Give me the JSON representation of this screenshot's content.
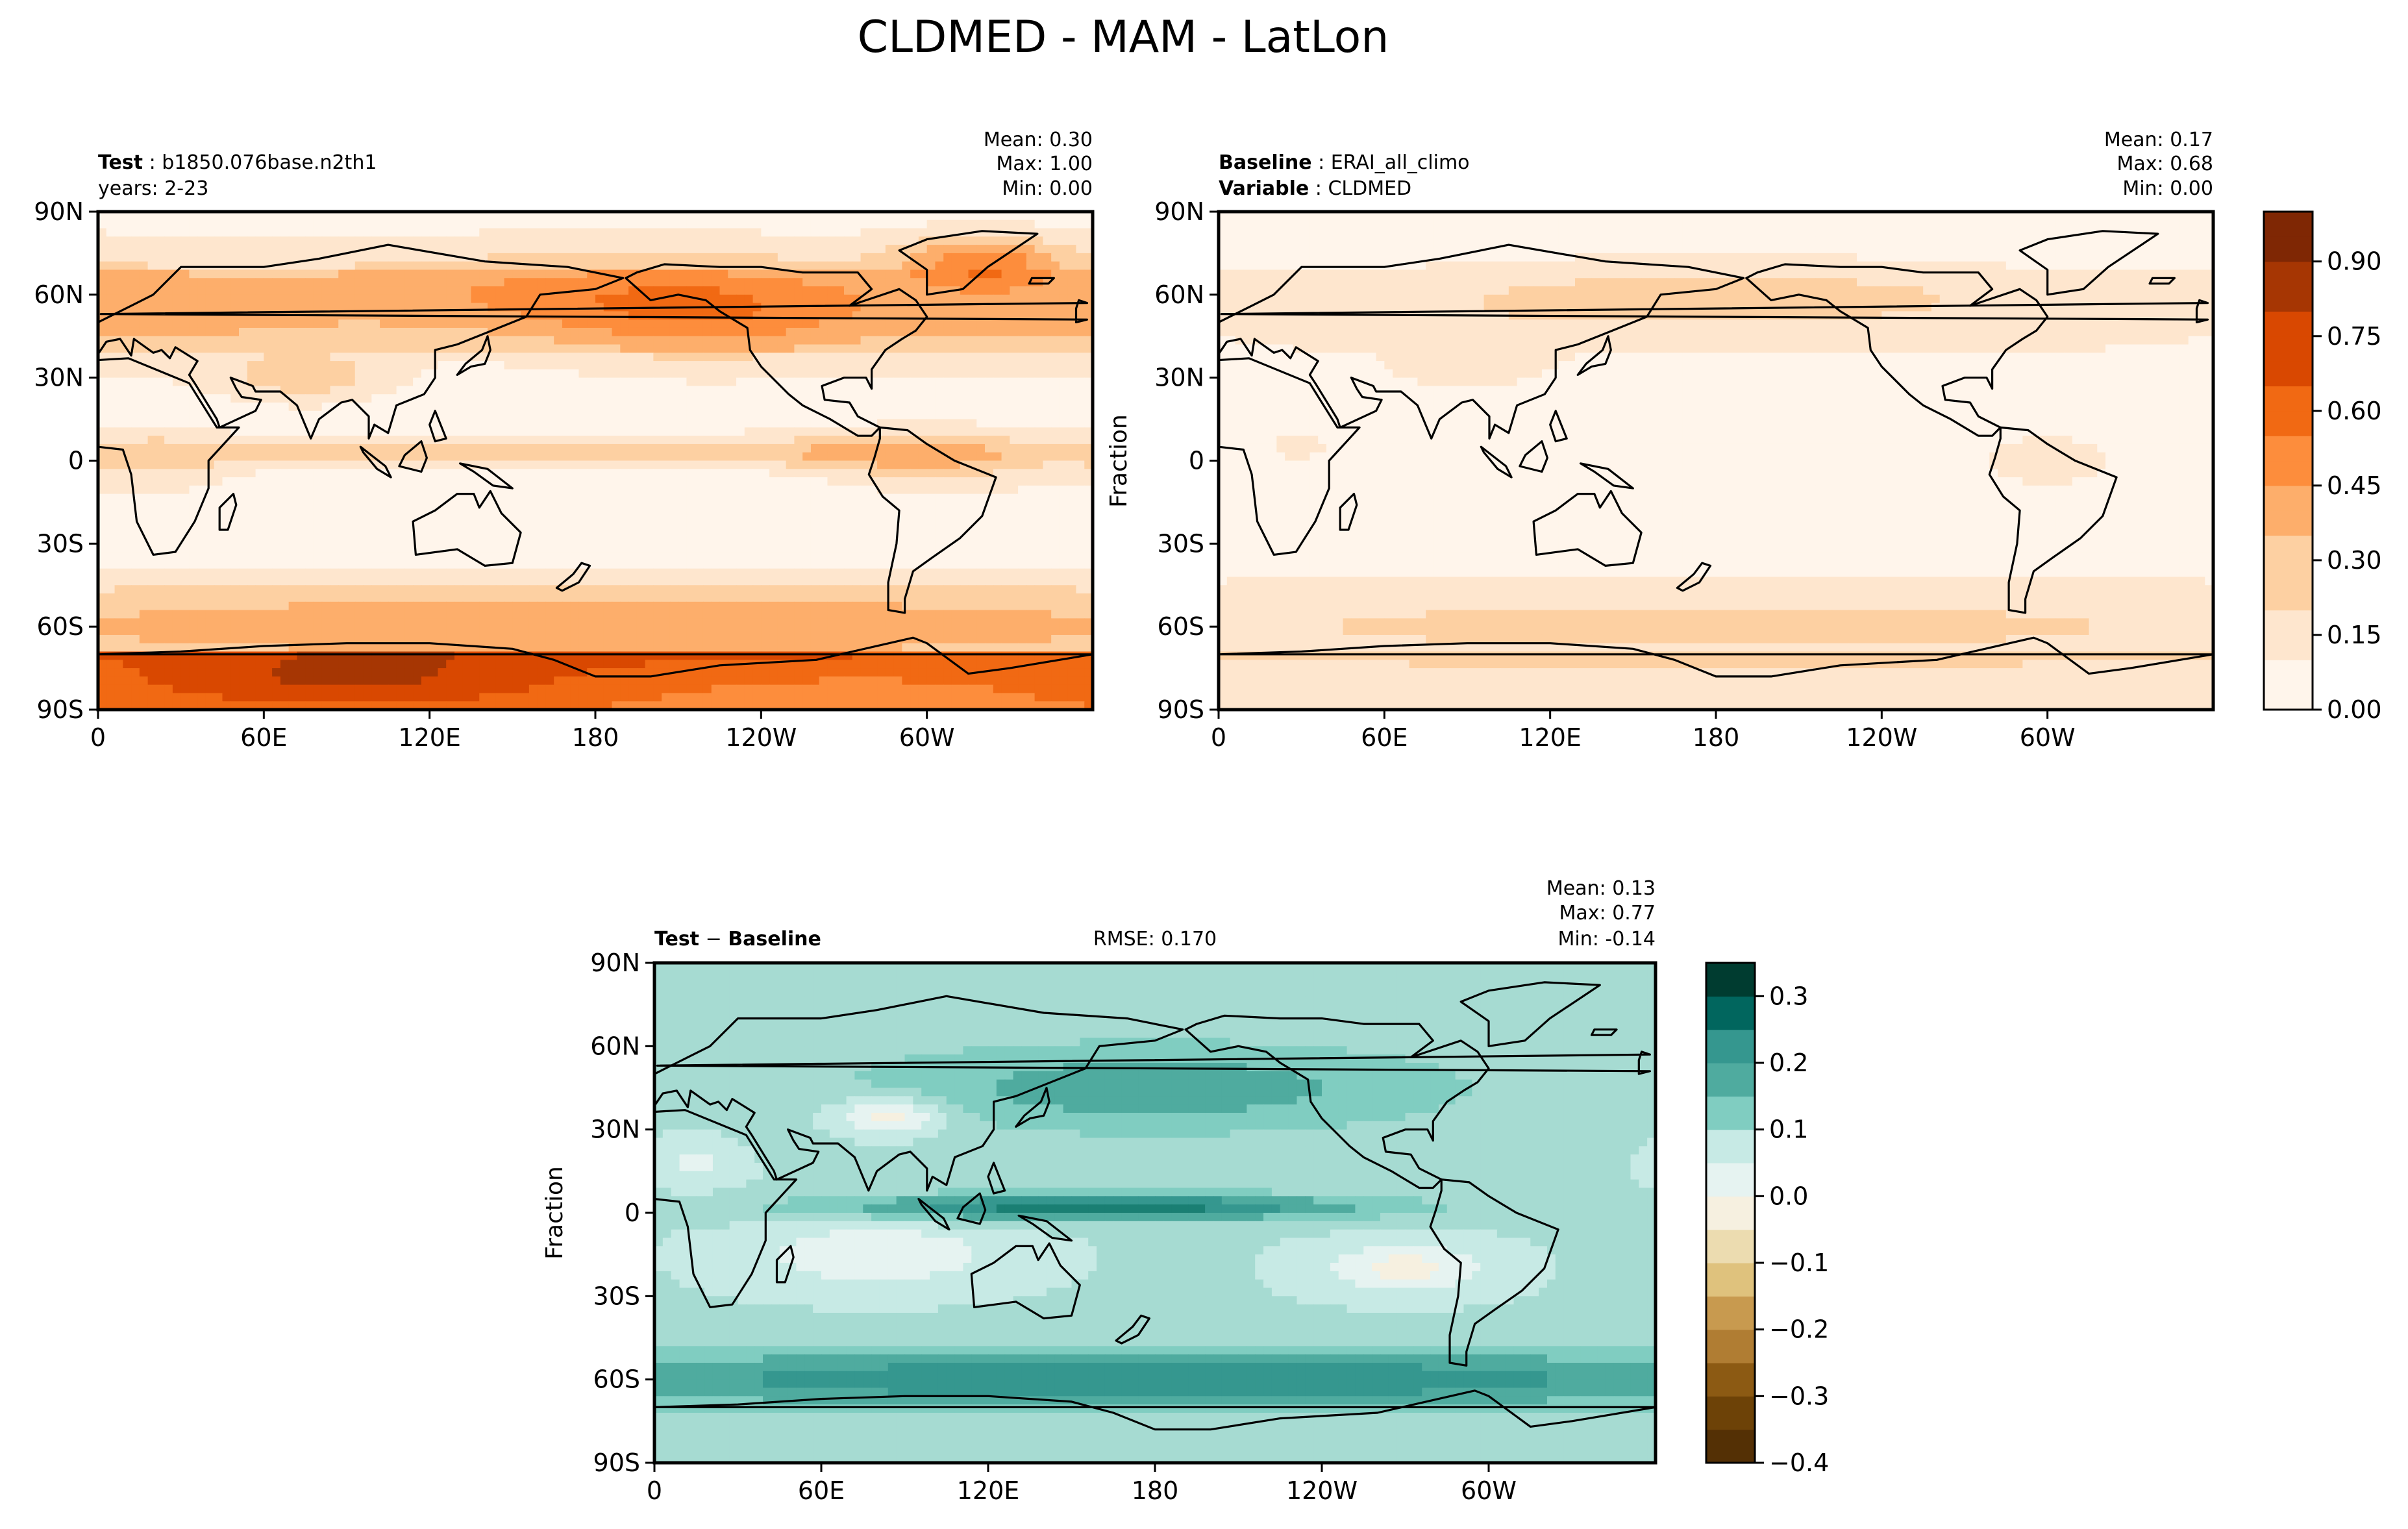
{
  "figure": {
    "title": "CLDMED - MAM - LatLon"
  },
  "chart_data": [
    {
      "type": "heatmap",
      "name": "test",
      "title_left_bold": "Test",
      "title_left_value": "b1850.076base.n2th1",
      "title_left_line2": "years: 2-23",
      "stats": {
        "mean": "Mean:  0.30",
        "max": "Max:  1.00",
        "min": "Min:  0.00"
      },
      "ylabel": "",
      "xticks": [
        "0",
        "60E",
        "120E",
        "180",
        "120W",
        "60W"
      ],
      "yticks": [
        "90N",
        "60N",
        "30N",
        "0",
        "30S",
        "60S",
        "90S"
      ],
      "xlim": [
        0,
        360
      ],
      "ylim": [
        -90,
        90
      ],
      "colormap": "Oranges",
      "value_range": [
        0,
        1.0
      ]
    },
    {
      "type": "heatmap",
      "name": "baseline",
      "title_left_bold": "Baseline",
      "title_left_value": "ERAI_all_climo",
      "title_left_line2_bold": "Variable",
      "title_left_line2_value": "CLDMED",
      "stats": {
        "mean": "Mean:  0.17",
        "max": "Max:  0.68",
        "min": "Min:  0.00"
      },
      "ylabel": "Fraction",
      "xticks": [
        "0",
        "60E",
        "120E",
        "180",
        "120W",
        "60W"
      ],
      "yticks": [
        "90N",
        "60N",
        "30N",
        "0",
        "30S",
        "60S",
        "90S"
      ],
      "xlim": [
        0,
        360
      ],
      "ylim": [
        -90,
        90
      ],
      "colormap": "Oranges",
      "value_range": [
        0,
        1.0
      ],
      "colorbar_ticks": [
        "0.00",
        "0.15",
        "0.30",
        "0.45",
        "0.60",
        "0.75",
        "0.90"
      ],
      "colorbar_tick_values": [
        0.0,
        0.15,
        0.3,
        0.45,
        0.6,
        0.75,
        0.9
      ]
    },
    {
      "type": "heatmap",
      "name": "difference",
      "title_left_bold": "Test",
      "title_left_sep": " − ",
      "title_left_bold2": "Baseline",
      "title_center": "RMSE: 0.170",
      "stats": {
        "mean": "Mean:  0.13",
        "max": "Max:  0.77",
        "min": "Min: -0.14"
      },
      "ylabel": "Fraction",
      "xticks": [
        "0",
        "60E",
        "120E",
        "180",
        "120W",
        "60W"
      ],
      "yticks": [
        "90N",
        "60N",
        "30N",
        "0",
        "30S",
        "60S",
        "90S"
      ],
      "xlim": [
        0,
        360
      ],
      "ylim": [
        -90,
        90
      ],
      "colormap": "BrBG",
      "value_range": [
        -0.4,
        0.35
      ],
      "colorbar_ticks": [
        "−0.4",
        "−0.3",
        "−0.2",
        "−0.1",
        "0.0",
        "0.1",
        "0.2",
        "0.3"
      ],
      "colorbar_tick_values": [
        -0.4,
        -0.3,
        -0.2,
        -0.1,
        0.0,
        0.1,
        0.2,
        0.3
      ]
    }
  ],
  "colors": {
    "oranges": [
      "#fff5eb",
      "#fee6ce",
      "#fdd0a2",
      "#fdae6b",
      "#fd8d3c",
      "#f16913",
      "#d94801",
      "#a63603",
      "#7f2704"
    ],
    "brbg_neg": [
      "#f6f0e0",
      "#ecdcb0",
      "#dfc27d",
      "#c89a4f",
      "#b07d33",
      "#8c5a13",
      "#6d4207",
      "#543005"
    ],
    "brbg_pos": [
      "#e6f3f1",
      "#c7eae5",
      "#a6dbd2",
      "#80cdc1",
      "#4fab9f",
      "#35978f",
      "#1a7f73",
      "#01665e",
      "#003c30"
    ]
  }
}
